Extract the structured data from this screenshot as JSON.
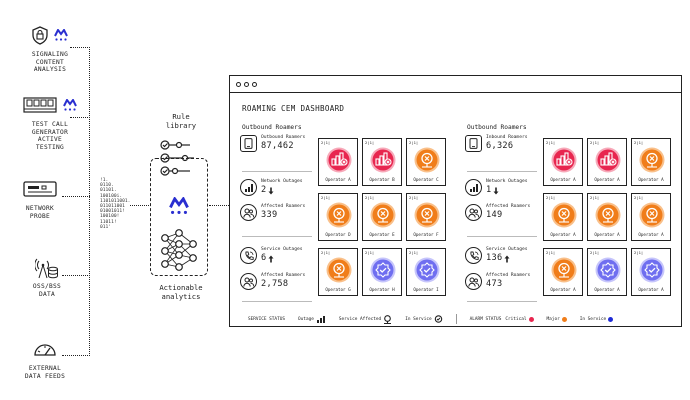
{
  "sources": [
    {
      "id": "signaling",
      "label": "SIGNALING\nCONTENT\nANALYSIS",
      "icon": "shield-lock-icon"
    },
    {
      "id": "testcall",
      "label": "TEST CALL\nGENERATOR\nACTIVE\nTESTING",
      "icon": "server-rack-icon"
    },
    {
      "id": "probe",
      "label": "NETWORK\nPROBE",
      "icon": "probe-icon"
    },
    {
      "id": "ossbss",
      "label": "OSS/BSS\nDATA",
      "icon": "antenna-database-icon"
    },
    {
      "id": "external",
      "label": "EXTERNAL\nDATA FEEDS",
      "icon": "gauge-icon"
    }
  ],
  "data_stream": "!1.\n0110.\n01101.\n100100i.\n1101011001.\n011011001\n01001011!\n100100!\n11011!\n011'",
  "middle": {
    "rule_library": "Rule\nlibrary",
    "actionable_analytics": "Actionable\nanalytics"
  },
  "dashboard": {
    "title": "ROAMING CEM DASHBOARD",
    "panels": [
      {
        "title": "Outbound Roamers",
        "metrics": [
          {
            "label": "Outbound Roamers",
            "value": "87,462",
            "icon": "phone-icon"
          },
          {
            "label": "Network Outages",
            "value": "2",
            "arrow": "down",
            "icon": "bar-chart-icon"
          },
          {
            "label": "Affected Roamers",
            "value": "339",
            "icon": "users-icon"
          },
          {
            "label": "Service Outages",
            "value": "6",
            "arrow": "up",
            "icon": "phone-call-icon"
          },
          {
            "label": "Affected Roamers",
            "value": "2,758",
            "icon": "users-icon"
          }
        ],
        "cards": [
          {
            "badge": "2|1|",
            "operator": "Operator A",
            "status": "outage"
          },
          {
            "badge": "2|1|",
            "operator": "Operator B",
            "status": "outage"
          },
          {
            "badge": "2|1|",
            "operator": "Operator C",
            "status": "service-affected"
          },
          {
            "badge": "2|1|",
            "operator": "Operator D",
            "status": "service-affected"
          },
          {
            "badge": "2|1|",
            "operator": "Operator E",
            "status": "service-affected"
          },
          {
            "badge": "2|1|",
            "operator": "Operator F",
            "status": "service-affected"
          },
          {
            "badge": "2|1|",
            "operator": "Operator G",
            "status": "service-affected"
          },
          {
            "badge": "2|1|",
            "operator": "Operator H",
            "status": "in-service"
          },
          {
            "badge": "2|1|",
            "operator": "Operator I",
            "status": "in-service"
          }
        ]
      },
      {
        "title": "Outbound Roamers",
        "metrics": [
          {
            "label": "Inbound Roamers",
            "value": "6,326",
            "icon": "phone-icon"
          },
          {
            "label": "Network Outages",
            "value": "1",
            "arrow": "down",
            "icon": "bar-chart-icon"
          },
          {
            "label": "Affected Roamers",
            "value": "149",
            "icon": "users-icon"
          },
          {
            "label": "Service Outages",
            "value": "136",
            "arrow": "up",
            "icon": "phone-call-icon"
          },
          {
            "label": "Affected Roamers",
            "value": "473",
            "icon": "users-icon"
          }
        ],
        "cards": [
          {
            "badge": "2|1|",
            "operator": "Operator A",
            "status": "outage"
          },
          {
            "badge": "2|1|",
            "operator": "Operator A",
            "status": "outage"
          },
          {
            "badge": "2|1|",
            "operator": "Operator A",
            "status": "service-affected"
          },
          {
            "badge": "2|1|",
            "operator": "Operator A",
            "status": "service-affected"
          },
          {
            "badge": "2|1|",
            "operator": "Operator A",
            "status": "service-affected"
          },
          {
            "badge": "2|1|",
            "operator": "Operator A",
            "status": "service-affected"
          },
          {
            "badge": "2|1|",
            "operator": "Operator A",
            "status": "service-affected"
          },
          {
            "badge": "2|1|",
            "operator": "Operator A",
            "status": "in-service"
          },
          {
            "badge": "2|1|",
            "operator": "Operator A",
            "status": "in-service"
          }
        ]
      }
    ],
    "legend_service": {
      "heading": "SERVICE STATUS",
      "items": [
        "Outage",
        "Service Affected",
        "In Service"
      ]
    },
    "legend_alarm": {
      "heading": "ALARM STATUS",
      "items": [
        {
          "label": "Critical",
          "color": "#e8264f"
        },
        {
          "label": "Major",
          "color": "#f07d1a"
        },
        {
          "label": "In Service",
          "color": "#1f2bd6"
        }
      ]
    }
  },
  "colors": {
    "critical": "#e8264f",
    "major": "#f07d1a",
    "in_service": "#6f6ef0",
    "brand": "#2a2fd0"
  }
}
